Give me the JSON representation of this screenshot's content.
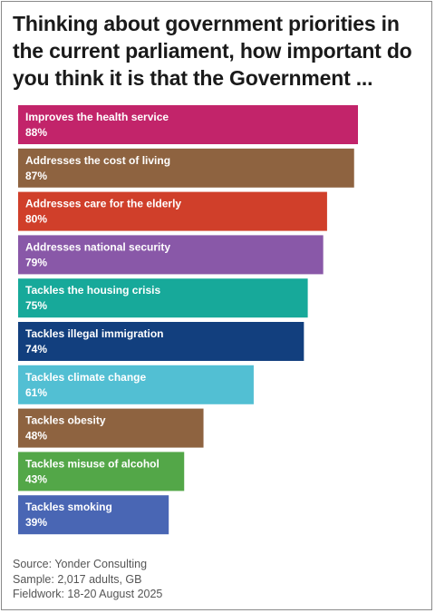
{
  "title": "Thinking about government priorities in the current parliament, how important do you think it is that the Government ...",
  "footer": {
    "source": "Source: Yonder Consulting",
    "sample": "Sample: 2,017 adults, GB",
    "fieldwork": "Fieldwork: 18-20 August 2025"
  },
  "chart_data": {
    "type": "bar",
    "orientation": "horizontal",
    "title": "Thinking about government priorities in the current parliament, how important do you think it is that the Government ...",
    "xlim": [
      0,
      100
    ],
    "grid": false,
    "value_suffix": "%",
    "categories": [
      "Improves the health service",
      "Addresses the cost of living",
      "Addresses care for the elderly",
      "Addresses national security",
      "Tackles the housing crisis",
      "Tackles illegal immigration",
      "Tackles climate change",
      "Tackles obesity",
      "Tackles misuse of alcohol",
      "Tackles smoking"
    ],
    "values": [
      88,
      87,
      80,
      79,
      75,
      74,
      61,
      48,
      43,
      39
    ],
    "colors": [
      "#c2246a",
      "#8e6340",
      "#d03f2a",
      "#8958a8",
      "#17a99a",
      "#123f7e",
      "#52bfd3",
      "#8e6340",
      "#53a748",
      "#4966b4"
    ]
  }
}
